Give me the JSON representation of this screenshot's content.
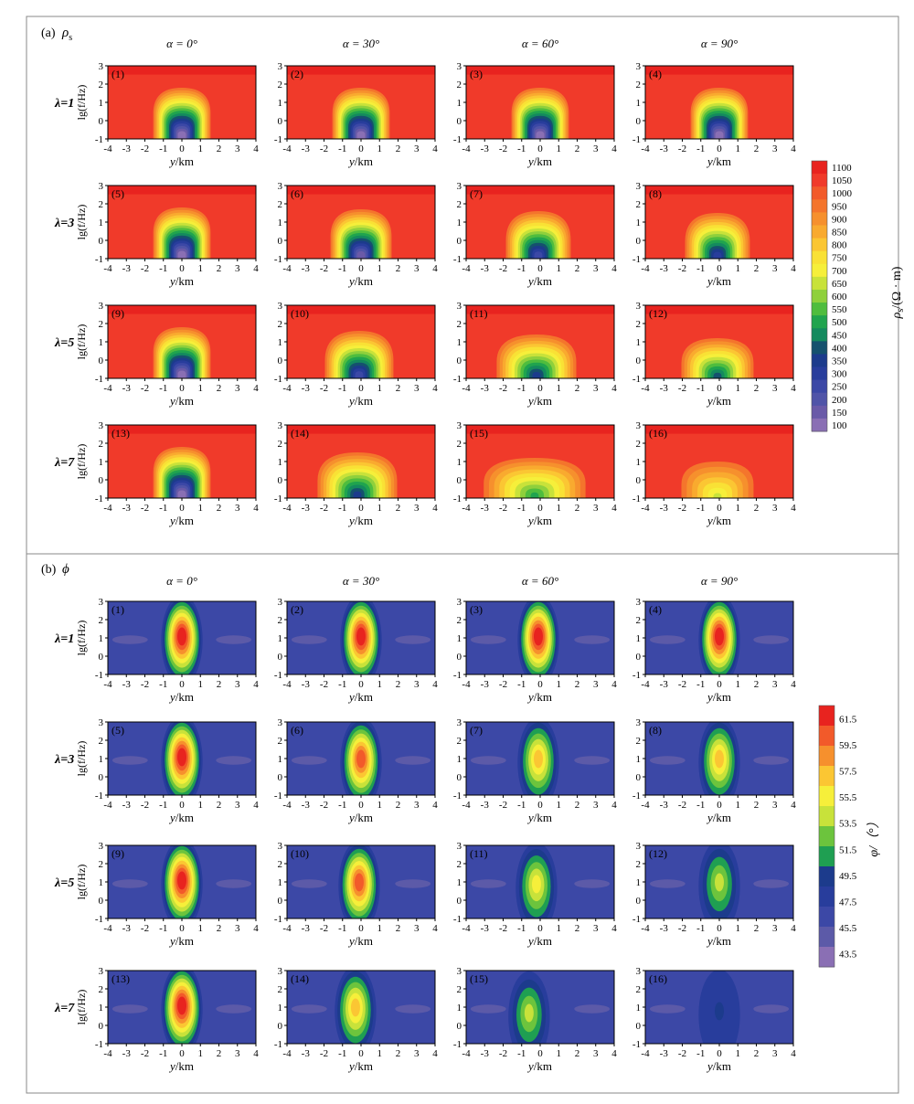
{
  "figure": {
    "panel_a": {
      "label": "(a)",
      "symbol": "ρ",
      "symbol_sub": "s"
    },
    "panel_b": {
      "label": "(b)",
      "symbol": "ϕ"
    },
    "column_titles": [
      "α = 0°",
      "α = 30°",
      "α = 60°",
      "α = 90°"
    ],
    "row_titles": [
      "λ=1",
      "λ=3",
      "λ=5",
      "λ=7"
    ],
    "subplot_labels": [
      "(1)",
      "(2)",
      "(3)",
      "(4)",
      "(5)",
      "(6)",
      "(7)",
      "(8)",
      "(9)",
      "(10)",
      "(11)",
      "(12)",
      "(13)",
      "(14)",
      "(15)",
      "(16)"
    ],
    "x_ticks": [
      "-4",
      "-3",
      "-2",
      "-1",
      "0",
      "1",
      "2",
      "3",
      "4"
    ],
    "y_ticks": [
      "-1",
      "0",
      "1",
      "2",
      "3"
    ],
    "xlabel_var": "y",
    "xlabel_unit": "/km",
    "ylabel": "lg(f/Hz)"
  },
  "colorbar_a": {
    "label_symbol": "ρ",
    "label_sub": "s",
    "label_unit": "/(Ω · m)",
    "ticks": [
      "1100",
      "1050",
      "1000",
      "950",
      "900",
      "850",
      "800",
      "750",
      "700",
      "650",
      "600",
      "550",
      "500",
      "450",
      "400",
      "350",
      "300",
      "250",
      "200",
      "150",
      "100"
    ],
    "colors": [
      "#e8231f",
      "#f03a2a",
      "#f25a2a",
      "#f4752c",
      "#f6902d",
      "#f9aa2f",
      "#fbc633",
      "#f9e135",
      "#f6ef3a",
      "#c8e23a",
      "#8fd03c",
      "#4fbd3e",
      "#20a44e",
      "#148a5e",
      "#15516e",
      "#1c3b8c",
      "#283d9c",
      "#3c48a6",
      "#5054a8",
      "#6a5aa8",
      "#8a6fb4"
    ]
  },
  "colorbar_b": {
    "label": "φ/（°）",
    "ticks": [
      "61.5",
      "59.5",
      "57.5",
      "55.5",
      "53.5",
      "51.5",
      "49.5",
      "47.5",
      "45.5",
      "43.5"
    ],
    "colors": [
      "#e8231f",
      "#f25a2a",
      "#f6902d",
      "#fbc633",
      "#f6ef3a",
      "#c8e23a",
      "#6cc43d",
      "#1f9f52",
      "#1c3b8c",
      "#283d9c",
      "#3c48a6",
      "#5c5aa8",
      "#8a6fb4"
    ]
  },
  "chart_data": [
    {
      "type": "heatmap",
      "title": "(a) ρs",
      "xlabel": "y/km",
      "ylabel": "lg(f/Hz)",
      "xlim": [
        -4,
        4
      ],
      "ylim": [
        -1,
        3
      ],
      "colorbar_range": [
        100,
        1100
      ],
      "colorbar_unit": "Ω · m",
      "columns": [
        "α = 0°",
        "α = 30°",
        "α = 60°",
        "α = 90°"
      ],
      "rows": [
        "λ=1",
        "λ=3",
        "λ=5",
        "λ=7"
      ],
      "anomaly": [
        {
          "panel": "(1)",
          "alpha": 0,
          "lambda": 1,
          "min": 100,
          "center_y": 0.0,
          "top_lgf": 1.8,
          "half_width_km": 1.2
        },
        {
          "panel": "(2)",
          "alpha": 30,
          "lambda": 1,
          "min": 100,
          "center_y": 0.0,
          "top_lgf": 1.8,
          "half_width_km": 1.2
        },
        {
          "panel": "(3)",
          "alpha": 60,
          "lambda": 1,
          "min": 100,
          "center_y": 0.0,
          "top_lgf": 1.8,
          "half_width_km": 1.2
        },
        {
          "panel": "(4)",
          "alpha": 90,
          "lambda": 1,
          "min": 100,
          "center_y": 0.0,
          "top_lgf": 1.8,
          "half_width_km": 1.2
        },
        {
          "panel": "(5)",
          "alpha": 0,
          "lambda": 3,
          "min": 100,
          "center_y": 0.0,
          "top_lgf": 1.8,
          "half_width_km": 1.2
        },
        {
          "panel": "(6)",
          "alpha": 30,
          "lambda": 3,
          "min": 150,
          "center_y": 0.0,
          "top_lgf": 1.7,
          "half_width_km": 1.3
        },
        {
          "panel": "(7)",
          "alpha": 60,
          "lambda": 3,
          "min": 250,
          "center_y": -0.1,
          "top_lgf": 1.6,
          "half_width_km": 1.4
        },
        {
          "panel": "(8)",
          "alpha": 90,
          "lambda": 3,
          "min": 300,
          "center_y": -0.1,
          "top_lgf": 1.5,
          "half_width_km": 1.4
        },
        {
          "panel": "(9)",
          "alpha": 0,
          "lambda": 5,
          "min": 100,
          "center_y": 0.0,
          "top_lgf": 1.8,
          "half_width_km": 1.2
        },
        {
          "panel": "(10)",
          "alpha": 30,
          "lambda": 5,
          "min": 250,
          "center_y": -0.1,
          "top_lgf": 1.6,
          "half_width_km": 1.5
        },
        {
          "panel": "(11)",
          "alpha": 60,
          "lambda": 5,
          "min": 350,
          "center_y": -0.2,
          "top_lgf": 1.4,
          "half_width_km": 1.8
        },
        {
          "panel": "(12)",
          "alpha": 90,
          "lambda": 5,
          "min": 400,
          "center_y": -0.1,
          "top_lgf": 1.2,
          "half_width_km": 1.6
        },
        {
          "panel": "(13)",
          "alpha": 0,
          "lambda": 7,
          "min": 100,
          "center_y": 0.0,
          "top_lgf": 1.8,
          "half_width_km": 1.2
        },
        {
          "panel": "(14)",
          "alpha": 30,
          "lambda": 7,
          "min": 350,
          "center_y": -0.2,
          "top_lgf": 1.5,
          "half_width_km": 1.8
        },
        {
          "panel": "(15)",
          "alpha": 60,
          "lambda": 7,
          "min": 500,
          "center_y": -0.3,
          "top_lgf": 1.2,
          "half_width_km": 2.4
        },
        {
          "panel": "(16)",
          "alpha": 90,
          "lambda": 7,
          "min": 650,
          "center_y": -0.1,
          "top_lgf": 1.0,
          "half_width_km": 1.6
        }
      ]
    },
    {
      "type": "heatmap",
      "title": "(b) ϕ",
      "xlabel": "y/km",
      "ylabel": "lg(f/Hz)",
      "xlim": [
        -4,
        4
      ],
      "ylim": [
        -1,
        3
      ],
      "colorbar_range": [
        43.5,
        61.5
      ],
      "colorbar_unit": "°",
      "columns": [
        "α = 0°",
        "α = 30°",
        "α = 60°",
        "α = 90°"
      ],
      "rows": [
        "λ=1",
        "λ=3",
        "λ=5",
        "λ=7"
      ],
      "anomaly": [
        {
          "panel": "(1)",
          "alpha": 0,
          "lambda": 1,
          "max": 61.5,
          "center_y": 0.0,
          "peak_lgf": 1.5
        },
        {
          "panel": "(2)",
          "alpha": 30,
          "lambda": 1,
          "max": 61.5,
          "center_y": 0.0,
          "peak_lgf": 1.5
        },
        {
          "panel": "(3)",
          "alpha": 60,
          "lambda": 1,
          "max": 61.5,
          "center_y": -0.1,
          "peak_lgf": 1.5
        },
        {
          "panel": "(4)",
          "alpha": 90,
          "lambda": 1,
          "max": 61.5,
          "center_y": 0.0,
          "peak_lgf": 1.5
        },
        {
          "panel": "(5)",
          "alpha": 0,
          "lambda": 3,
          "max": 61.5,
          "center_y": 0.0,
          "peak_lgf": 1.5
        },
        {
          "panel": "(6)",
          "alpha": 30,
          "lambda": 3,
          "max": 59.5,
          "center_y": 0.0,
          "peak_lgf": 1.4
        },
        {
          "panel": "(7)",
          "alpha": 60,
          "lambda": 3,
          "max": 57.5,
          "center_y": -0.1,
          "peak_lgf": 1.4
        },
        {
          "panel": "(8)",
          "alpha": 90,
          "lambda": 3,
          "max": 56.5,
          "center_y": 0.0,
          "peak_lgf": 1.4
        },
        {
          "panel": "(9)",
          "alpha": 0,
          "lambda": 5,
          "max": 61.5,
          "center_y": 0.0,
          "peak_lgf": 1.5
        },
        {
          "panel": "(10)",
          "alpha": 30,
          "lambda": 5,
          "max": 59.5,
          "center_y": -0.1,
          "peak_lgf": 1.4
        },
        {
          "panel": "(11)",
          "alpha": 60,
          "lambda": 5,
          "max": 55.5,
          "center_y": -0.2,
          "peak_lgf": 1.3
        },
        {
          "panel": "(12)",
          "alpha": 90,
          "lambda": 5,
          "max": 53.5,
          "center_y": 0.0,
          "peak_lgf": 1.4
        },
        {
          "panel": "(13)",
          "alpha": 0,
          "lambda": 7,
          "max": 61.5,
          "center_y": 0.0,
          "peak_lgf": 1.5
        },
        {
          "panel": "(14)",
          "alpha": 30,
          "lambda": 7,
          "max": 57.5,
          "center_y": -0.3,
          "peak_lgf": 1.4
        },
        {
          "panel": "(15)",
          "alpha": 60,
          "lambda": 7,
          "max": 53.5,
          "center_y": -0.6,
          "peak_lgf": 1.1
        },
        {
          "panel": "(16)",
          "alpha": 90,
          "lambda": 7,
          "max": 49.5,
          "center_y": 0.0,
          "peak_lgf": 1.2
        }
      ]
    }
  ]
}
